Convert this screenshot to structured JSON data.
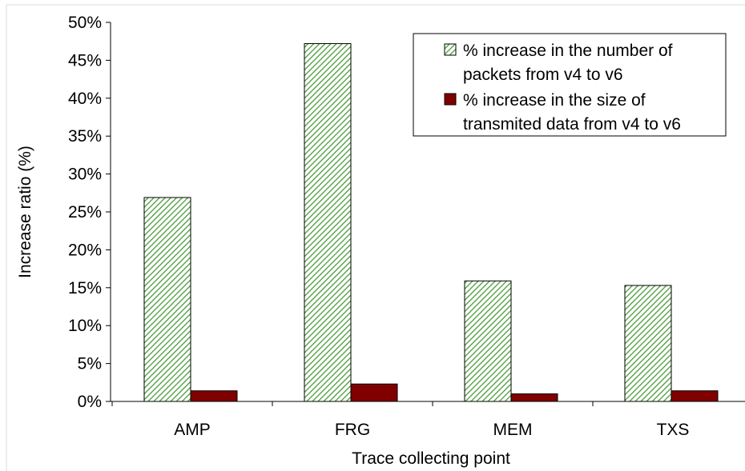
{
  "chart_data": {
    "type": "bar",
    "title": "",
    "xlabel": "Trace collecting point",
    "ylabel": "Increase ratio (%)",
    "categories": [
      "AMP",
      "FRG",
      "MEM",
      "TXS"
    ],
    "ylim": [
      0,
      50
    ],
    "yticks": [
      0,
      5,
      10,
      15,
      20,
      25,
      30,
      35,
      40,
      45,
      50
    ],
    "ytick_labels": [
      "0%",
      "5%",
      "10%",
      "15%",
      "20%",
      "25%",
      "30%",
      "35%",
      "40%",
      "45%",
      "50%"
    ],
    "grid": false,
    "legend_position": "top-right",
    "series": [
      {
        "name": "% increase in the number of packets from v4 to v6",
        "legend_lines": [
          "% increase in the number of",
          "packets from v4 to v6"
        ],
        "values": [
          26.9,
          47.2,
          15.9,
          15.3
        ],
        "color": "#4a9a3a",
        "pattern": "diagonal-hatch"
      },
      {
        "name": "% increase in the size of transmited data from v4 to v6",
        "legend_lines": [
          "% increase in the size of",
          "transmited data from v4 to v6"
        ],
        "values": [
          1.4,
          2.3,
          1.0,
          1.4
        ],
        "color": "#800000",
        "pattern": "solid"
      }
    ]
  }
}
